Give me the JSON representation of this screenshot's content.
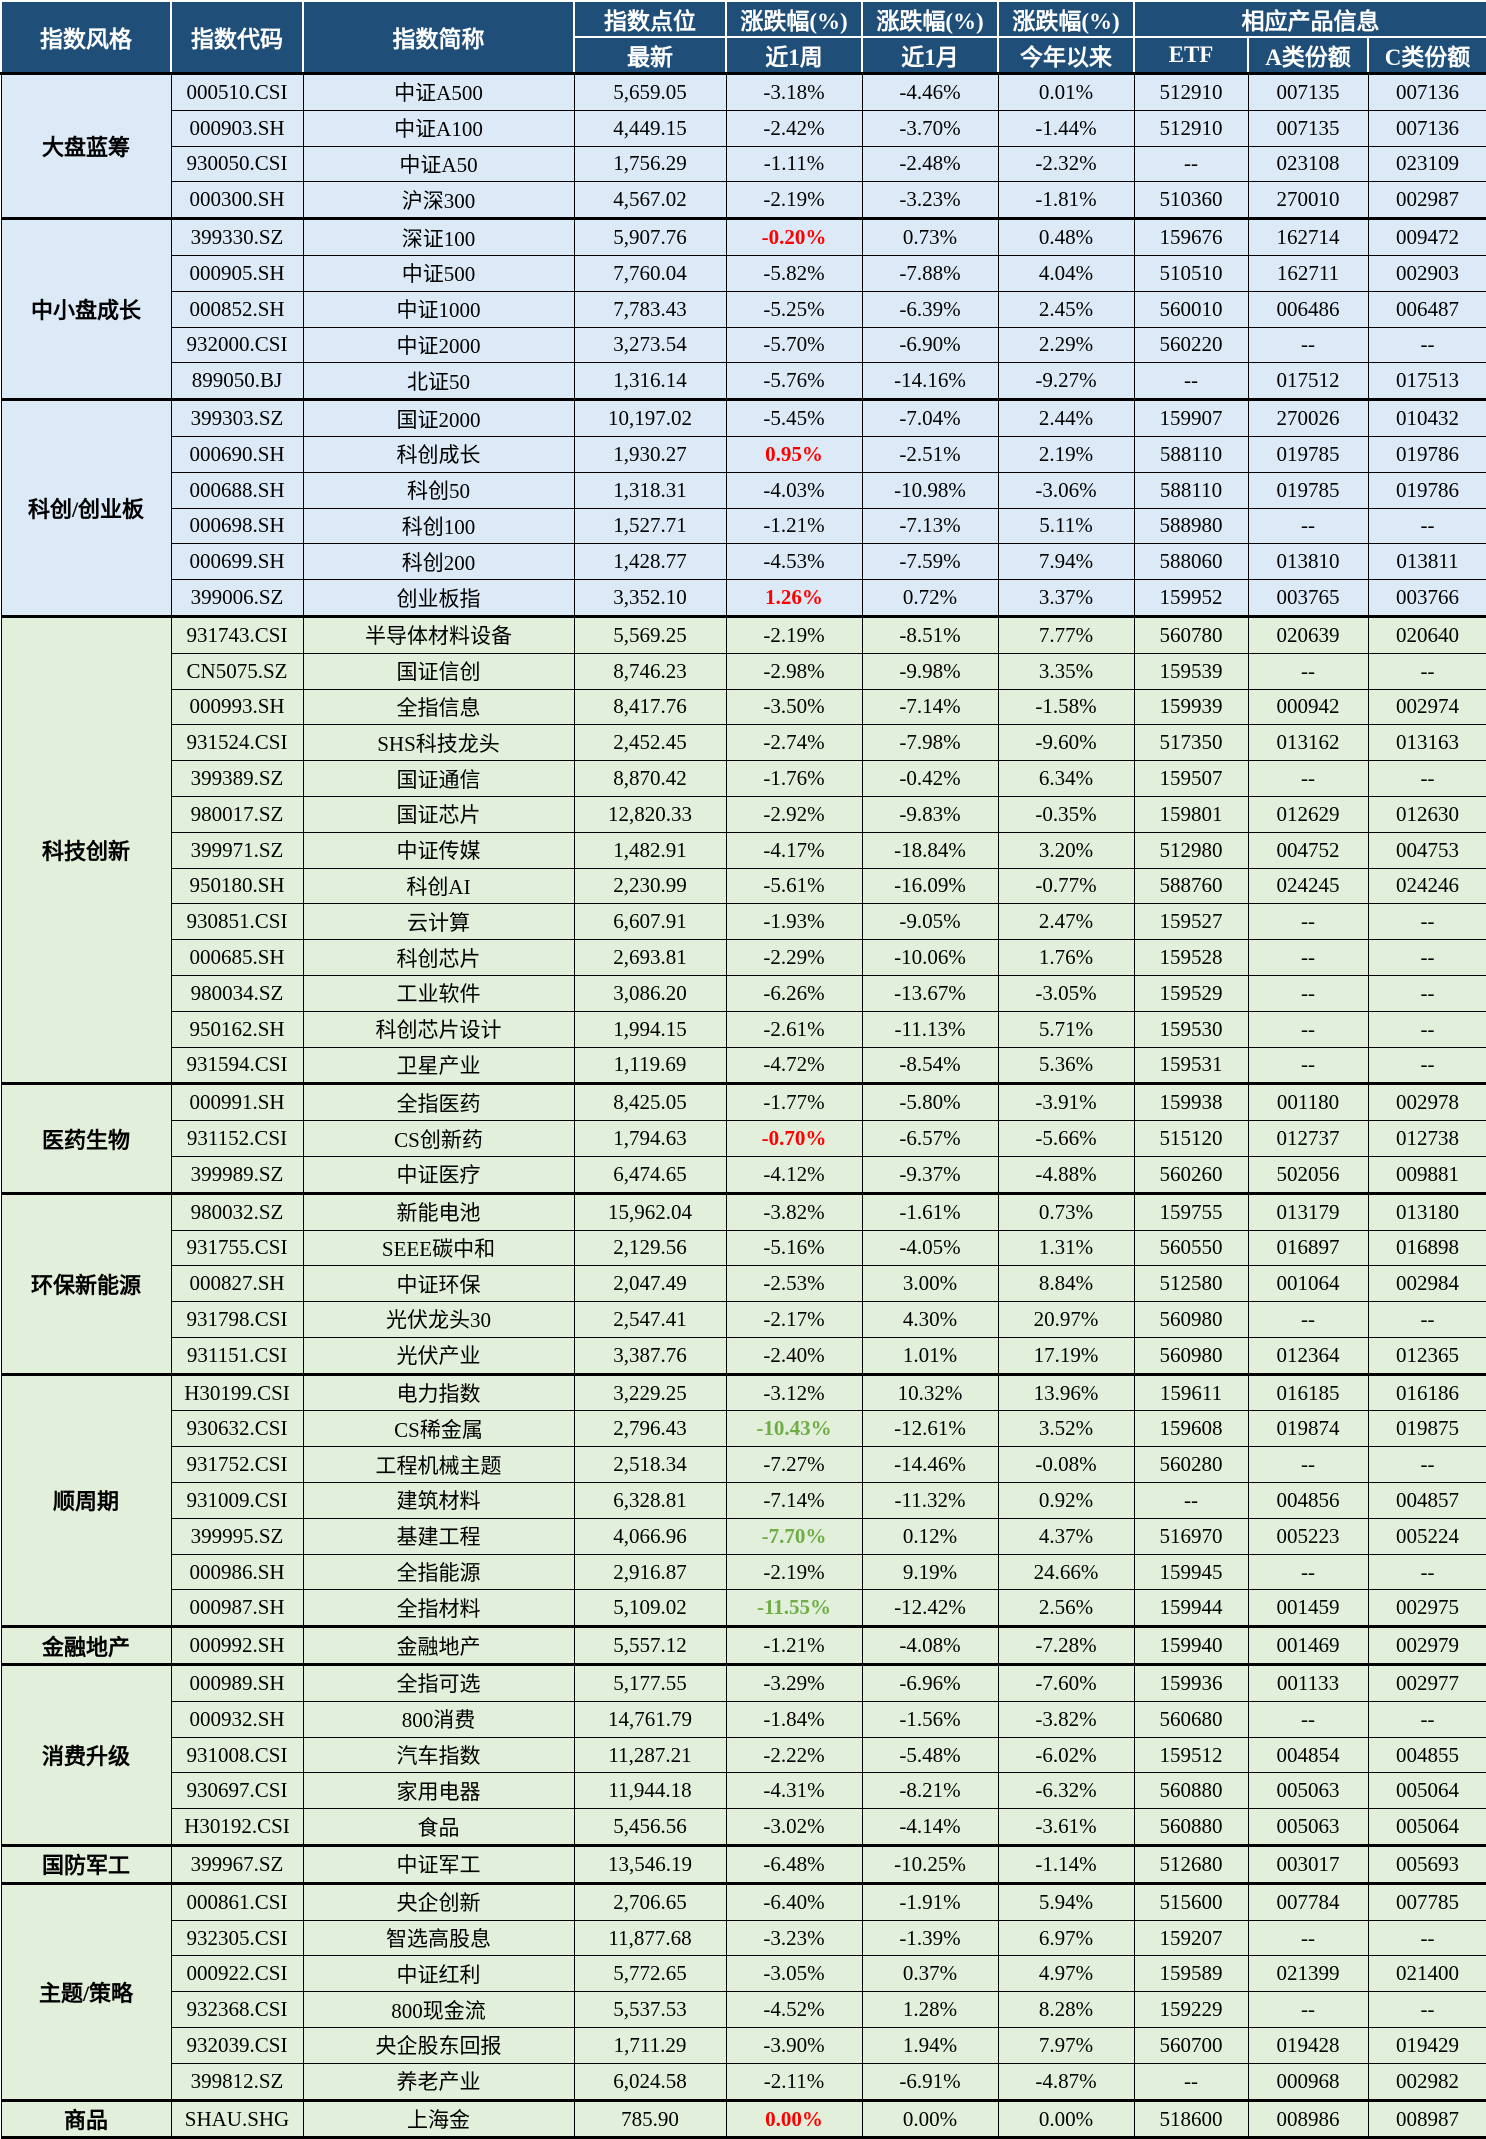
{
  "header": {
    "col_style": "指数风格",
    "col_code": "指数代码",
    "col_name": "指数简称",
    "col_points": "指数点位",
    "col_points_sub": "最新",
    "col_chg": "涨跌幅(%)",
    "col_chg_w": "近1周",
    "col_chg_m": "近1月",
    "col_chg_y": "今年以来",
    "col_products": "相应产品信息",
    "col_etf": "ETF",
    "col_a": "A类份额",
    "col_c": "C类份额"
  },
  "colors": {
    "header_bg": "#1F4E79",
    "header_text": "#FFFFFF",
    "blue_row_bg": "#DCE9F6",
    "green_row_bg": "#E2EFDA",
    "up_red": "#FF0000",
    "down_green": "#70AD47",
    "grid": "#000000"
  },
  "groups": [
    {
      "style": "大盘蓝筹",
      "theme": "blue",
      "rows": [
        {
          "code": "000510.CSI",
          "name": "中证A500",
          "points": "5,659.05",
          "w1": "-3.18%",
          "m1": "-4.46%",
          "ytd": "0.01%",
          "etf": "512910",
          "a": "007135",
          "c": "007136"
        },
        {
          "code": "000903.SH",
          "name": "中证A100",
          "points": "4,449.15",
          "w1": "-2.42%",
          "m1": "-3.70%",
          "ytd": "-1.44%",
          "etf": "512910",
          "a": "007135",
          "c": "007136"
        },
        {
          "code": "930050.CSI",
          "name": "中证A50",
          "points": "1,756.29",
          "w1": "-1.11%",
          "m1": "-2.48%",
          "ytd": "-2.32%",
          "etf": "--",
          "a": "023108",
          "c": "023109"
        },
        {
          "code": "000300.SH",
          "name": "沪深300",
          "points": "4,567.02",
          "w1": "-2.19%",
          "m1": "-3.23%",
          "ytd": "-1.81%",
          "etf": "510360",
          "a": "270010",
          "c": "002987"
        }
      ]
    },
    {
      "style": "中小盘成长",
      "theme": "blue",
      "rows": [
        {
          "code": "399330.SZ",
          "name": "深证100",
          "points": "5,907.76",
          "w1": "-0.20%",
          "w1_style": "red",
          "m1": "0.73%",
          "ytd": "0.48%",
          "etf": "159676",
          "a": "162714",
          "c": "009472"
        },
        {
          "code": "000905.SH",
          "name": "中证500",
          "points": "7,760.04",
          "w1": "-5.82%",
          "m1": "-7.88%",
          "ytd": "4.04%",
          "etf": "510510",
          "a": "162711",
          "c": "002903"
        },
        {
          "code": "000852.SH",
          "name": "中证1000",
          "points": "7,783.43",
          "w1": "-5.25%",
          "m1": "-6.39%",
          "ytd": "2.45%",
          "etf": "560010",
          "a": "006486",
          "c": "006487"
        },
        {
          "code": "932000.CSI",
          "name": "中证2000",
          "points": "3,273.54",
          "w1": "-5.70%",
          "m1": "-6.90%",
          "ytd": "2.29%",
          "etf": "560220",
          "a": "--",
          "c": "--"
        },
        {
          "code": "899050.BJ",
          "name": "北证50",
          "points": "1,316.14",
          "w1": "-5.76%",
          "m1": "-14.16%",
          "ytd": "-9.27%",
          "etf": "--",
          "a": "017512",
          "c": "017513"
        }
      ]
    },
    {
      "style": "科创/创业板",
      "theme": "blue",
      "rows": [
        {
          "code": "399303.SZ",
          "name": "国证2000",
          "points": "10,197.02",
          "w1": "-5.45%",
          "m1": "-7.04%",
          "ytd": "2.44%",
          "etf": "159907",
          "a": "270026",
          "c": "010432"
        },
        {
          "code": "000690.SH",
          "name": "科创成长",
          "points": "1,930.27",
          "w1": "0.95%",
          "w1_style": "red",
          "m1": "-2.51%",
          "ytd": "2.19%",
          "etf": "588110",
          "a": "019785",
          "c": "019786"
        },
        {
          "code": "000688.SH",
          "name": "科创50",
          "points": "1,318.31",
          "w1": "-4.03%",
          "m1": "-10.98%",
          "ytd": "-3.06%",
          "etf": "588110",
          "a": "019785",
          "c": "019786"
        },
        {
          "code": "000698.SH",
          "name": "科创100",
          "points": "1,527.71",
          "w1": "-1.21%",
          "m1": "-7.13%",
          "ytd": "5.11%",
          "etf": "588980",
          "a": "--",
          "c": "--"
        },
        {
          "code": "000699.SH",
          "name": "科创200",
          "points": "1,428.77",
          "w1": "-4.53%",
          "m1": "-7.59%",
          "ytd": "7.94%",
          "etf": "588060",
          "a": "013810",
          "c": "013811"
        },
        {
          "code": "399006.SZ",
          "name": "创业板指",
          "points": "3,352.10",
          "w1": "1.26%",
          "w1_style": "red",
          "m1": "0.72%",
          "ytd": "3.37%",
          "etf": "159952",
          "a": "003765",
          "c": "003766"
        }
      ]
    },
    {
      "style": "科技创新",
      "theme": "green",
      "rows": [
        {
          "code": "931743.CSI",
          "name": "半导体材料设备",
          "points": "5,569.25",
          "w1": "-2.19%",
          "m1": "-8.51%",
          "ytd": "7.77%",
          "etf": "560780",
          "a": "020639",
          "c": "020640"
        },
        {
          "code": "CN5075.SZ",
          "name": "国证信创",
          "points": "8,746.23",
          "w1": "-2.98%",
          "m1": "-9.98%",
          "ytd": "3.35%",
          "etf": "159539",
          "a": "--",
          "c": "--"
        },
        {
          "code": "000993.SH",
          "name": "全指信息",
          "points": "8,417.76",
          "w1": "-3.50%",
          "m1": "-7.14%",
          "ytd": "-1.58%",
          "etf": "159939",
          "a": "000942",
          "c": "002974"
        },
        {
          "code": "931524.CSI",
          "name": "SHS科技龙头",
          "points": "2,452.45",
          "w1": "-2.74%",
          "m1": "-7.98%",
          "ytd": "-9.60%",
          "etf": "517350",
          "a": "013162",
          "c": "013163"
        },
        {
          "code": "399389.SZ",
          "name": "国证通信",
          "points": "8,870.42",
          "w1": "-1.76%",
          "m1": "-0.42%",
          "ytd": "6.34%",
          "etf": "159507",
          "a": "--",
          "c": "--"
        },
        {
          "code": "980017.SZ",
          "name": "国证芯片",
          "points": "12,820.33",
          "w1": "-2.92%",
          "m1": "-9.83%",
          "ytd": "-0.35%",
          "etf": "159801",
          "a": "012629",
          "c": "012630"
        },
        {
          "code": "399971.SZ",
          "name": "中证传媒",
          "points": "1,482.91",
          "w1": "-4.17%",
          "m1": "-18.84%",
          "ytd": "3.20%",
          "etf": "512980",
          "a": "004752",
          "c": "004753"
        },
        {
          "code": "950180.SH",
          "name": "科创AI",
          "points": "2,230.99",
          "w1": "-5.61%",
          "m1": "-16.09%",
          "ytd": "-0.77%",
          "etf": "588760",
          "a": "024245",
          "c": "024246"
        },
        {
          "code": "930851.CSI",
          "name": "云计算",
          "points": "6,607.91",
          "w1": "-1.93%",
          "m1": "-9.05%",
          "ytd": "2.47%",
          "etf": "159527",
          "a": "--",
          "c": "--"
        },
        {
          "code": "000685.SH",
          "name": "科创芯片",
          "points": "2,693.81",
          "w1": "-2.29%",
          "m1": "-10.06%",
          "ytd": "1.76%",
          "etf": "159528",
          "a": "--",
          "c": "--"
        },
        {
          "code": "980034.SZ",
          "name": "工业软件",
          "points": "3,086.20",
          "w1": "-6.26%",
          "m1": "-13.67%",
          "ytd": "-3.05%",
          "etf": "159529",
          "a": "--",
          "c": "--"
        },
        {
          "code": "950162.SH",
          "name": "科创芯片设计",
          "points": "1,994.15",
          "w1": "-2.61%",
          "m1": "-11.13%",
          "ytd": "5.71%",
          "etf": "159530",
          "a": "--",
          "c": "--"
        },
        {
          "code": "931594.CSI",
          "name": "卫星产业",
          "points": "1,119.69",
          "w1": "-4.72%",
          "m1": "-8.54%",
          "ytd": "5.36%",
          "etf": "159531",
          "a": "--",
          "c": "--"
        }
      ]
    },
    {
      "style": "医药生物",
      "theme": "green",
      "rows": [
        {
          "code": "000991.SH",
          "name": "全指医药",
          "points": "8,425.05",
          "w1": "-1.77%",
          "m1": "-5.80%",
          "ytd": "-3.91%",
          "etf": "159938",
          "a": "001180",
          "c": "002978"
        },
        {
          "code": "931152.CSI",
          "name": "CS创新药",
          "points": "1,794.63",
          "w1": "-0.70%",
          "w1_style": "red",
          "m1": "-6.57%",
          "ytd": "-5.66%",
          "etf": "515120",
          "a": "012737",
          "c": "012738"
        },
        {
          "code": "399989.SZ",
          "name": "中证医疗",
          "points": "6,474.65",
          "w1": "-4.12%",
          "m1": "-9.37%",
          "ytd": "-4.88%",
          "etf": "560260",
          "a": "502056",
          "c": "009881"
        }
      ]
    },
    {
      "style": "环保新能源",
      "theme": "green",
      "rows": [
        {
          "code": "980032.SZ",
          "name": "新能电池",
          "points": "15,962.04",
          "w1": "-3.82%",
          "m1": "-1.61%",
          "ytd": "0.73%",
          "etf": "159755",
          "a": "013179",
          "c": "013180"
        },
        {
          "code": "931755.CSI",
          "name": "SEEE碳中和",
          "points": "2,129.56",
          "w1": "-5.16%",
          "m1": "-4.05%",
          "ytd": "1.31%",
          "etf": "560550",
          "a": "016897",
          "c": "016898"
        },
        {
          "code": "000827.SH",
          "name": "中证环保",
          "points": "2,047.49",
          "w1": "-2.53%",
          "m1": "3.00%",
          "ytd": "8.84%",
          "etf": "512580",
          "a": "001064",
          "c": "002984"
        },
        {
          "code": "931798.CSI",
          "name": "光伏龙头30",
          "points": "2,547.41",
          "w1": "-2.17%",
          "m1": "4.30%",
          "ytd": "20.97%",
          "etf": "560980",
          "a": "--",
          "c": "--"
        },
        {
          "code": "931151.CSI",
          "name": "光伏产业",
          "points": "3,387.76",
          "w1": "-2.40%",
          "m1": "1.01%",
          "ytd": "17.19%",
          "etf": "560980",
          "a": "012364",
          "c": "012365"
        }
      ]
    },
    {
      "style": "顺周期",
      "theme": "green",
      "rows": [
        {
          "code": "H30199.CSI",
          "name": "电力指数",
          "points": "3,229.25",
          "w1": "-3.12%",
          "m1": "10.32%",
          "ytd": "13.96%",
          "etf": "159611",
          "a": "016185",
          "c": "016186"
        },
        {
          "code": "930632.CSI",
          "name": "CS稀金属",
          "points": "2,796.43",
          "w1": "-10.43%",
          "w1_style": "green-val",
          "m1": "-12.61%",
          "ytd": "3.52%",
          "etf": "159608",
          "a": "019874",
          "c": "019875"
        },
        {
          "code": "931752.CSI",
          "name": "工程机械主题",
          "points": "2,518.34",
          "w1": "-7.27%",
          "m1": "-14.46%",
          "ytd": "-0.08%",
          "etf": "560280",
          "a": "--",
          "c": "--"
        },
        {
          "code": "931009.CSI",
          "name": "建筑材料",
          "points": "6,328.81",
          "w1": "-7.14%",
          "m1": "-11.32%",
          "ytd": "0.92%",
          "etf": "--",
          "a": "004856",
          "c": "004857"
        },
        {
          "code": "399995.SZ",
          "name": "基建工程",
          "points": "4,066.96",
          "w1": "-7.70%",
          "w1_style": "green-val",
          "m1": "0.12%",
          "ytd": "4.37%",
          "etf": "516970",
          "a": "005223",
          "c": "005224"
        },
        {
          "code": "000986.SH",
          "name": "全指能源",
          "points": "2,916.87",
          "w1": "-2.19%",
          "m1": "9.19%",
          "ytd": "24.66%",
          "etf": "159945",
          "a": "--",
          "c": "--"
        },
        {
          "code": "000987.SH",
          "name": "全指材料",
          "points": "5,109.02",
          "w1": "-11.55%",
          "w1_style": "green-val",
          "m1": "-12.42%",
          "ytd": "2.56%",
          "etf": "159944",
          "a": "001459",
          "c": "002975"
        }
      ]
    },
    {
      "style": "金融地产",
      "theme": "green",
      "rows": [
        {
          "code": "000992.SH",
          "name": "金融地产",
          "points": "5,557.12",
          "w1": "-1.21%",
          "m1": "-4.08%",
          "ytd": "-7.28%",
          "etf": "159940",
          "a": "001469",
          "c": "002979"
        }
      ]
    },
    {
      "style": "消费升级",
      "theme": "green",
      "rows": [
        {
          "code": "000989.SH",
          "name": "全指可选",
          "points": "5,177.55",
          "w1": "-3.29%",
          "m1": "-6.96%",
          "ytd": "-7.60%",
          "etf": "159936",
          "a": "001133",
          "c": "002977"
        },
        {
          "code": "000932.SH",
          "name": "800消费",
          "points": "14,761.79",
          "w1": "-1.84%",
          "m1": "-1.56%",
          "ytd": "-3.82%",
          "etf": "560680",
          "a": "--",
          "c": "--"
        },
        {
          "code": "931008.CSI",
          "name": "汽车指数",
          "points": "11,287.21",
          "w1": "-2.22%",
          "m1": "-5.48%",
          "ytd": "-6.02%",
          "etf": "159512",
          "a": "004854",
          "c": "004855"
        },
        {
          "code": "930697.CSI",
          "name": "家用电器",
          "points": "11,944.18",
          "w1": "-4.31%",
          "m1": "-8.21%",
          "ytd": "-6.32%",
          "etf": "560880",
          "a": "005063",
          "c": "005064"
        },
        {
          "code": "H30192.CSI",
          "name": "食品",
          "points": "5,456.56",
          "w1": "-3.02%",
          "m1": "-4.14%",
          "ytd": "-3.61%",
          "etf": "560880",
          "a": "005063",
          "c": "005064"
        }
      ]
    },
    {
      "style": "国防军工",
      "theme": "green",
      "rows": [
        {
          "code": "399967.SZ",
          "name": "中证军工",
          "points": "13,546.19",
          "w1": "-6.48%",
          "m1": "-10.25%",
          "ytd": "-1.14%",
          "etf": "512680",
          "a": "003017",
          "c": "005693"
        }
      ]
    },
    {
      "style": "主题/策略",
      "theme": "green",
      "rows": [
        {
          "code": "000861.CSI",
          "name": "央企创新",
          "points": "2,706.65",
          "w1": "-6.40%",
          "m1": "-1.91%",
          "ytd": "5.94%",
          "etf": "515600",
          "a": "007784",
          "c": "007785"
        },
        {
          "code": "932305.CSI",
          "name": "智选高股息",
          "points": "11,877.68",
          "w1": "-3.23%",
          "m1": "-1.39%",
          "ytd": "6.97%",
          "etf": "159207",
          "a": "--",
          "c": "--"
        },
        {
          "code": "000922.CSI",
          "name": "中证红利",
          "points": "5,772.65",
          "w1": "-3.05%",
          "m1": "0.37%",
          "ytd": "4.97%",
          "etf": "159589",
          "a": "021399",
          "c": "021400"
        },
        {
          "code": "932368.CSI",
          "name": "800现金流",
          "points": "5,537.53",
          "w1": "-4.52%",
          "m1": "1.28%",
          "ytd": "8.28%",
          "etf": "159229",
          "a": "--",
          "c": "--"
        },
        {
          "code": "932039.CSI",
          "name": "央企股东回报",
          "points": "1,711.29",
          "w1": "-3.90%",
          "m1": "1.94%",
          "ytd": "7.97%",
          "etf": "560700",
          "a": "019428",
          "c": "019429"
        },
        {
          "code": "399812.SZ",
          "name": "养老产业",
          "points": "6,024.58",
          "w1": "-2.11%",
          "m1": "-6.91%",
          "ytd": "-4.87%",
          "etf": "--",
          "a": "000968",
          "c": "002982"
        }
      ]
    },
    {
      "style": "商品",
      "theme": "green",
      "rows": [
        {
          "code": "SHAU.SHG",
          "name": "上海金",
          "points": "785.90",
          "w1": "0.00%",
          "w1_style": "red",
          "m1": "0.00%",
          "ytd": "0.00%",
          "etf": "518600",
          "a": "008986",
          "c": "008987"
        }
      ]
    }
  ]
}
